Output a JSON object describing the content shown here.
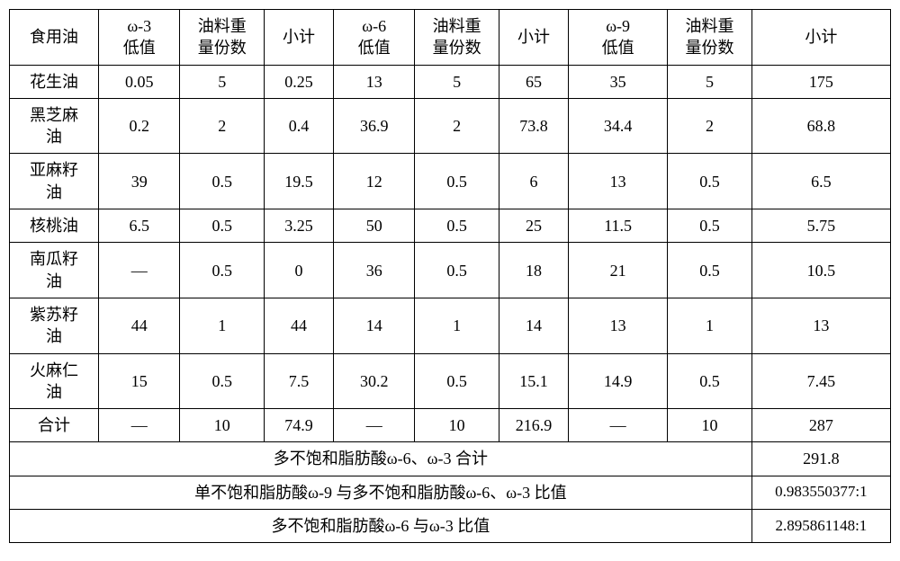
{
  "table": {
    "columns": [
      "食用油",
      "ω-3\n低值",
      "油料重\n量份数",
      "小计",
      "ω-6\n低值",
      "油料重\n量份数",
      "小计",
      "ω-9\n低值",
      "油料重\n量份数",
      "小计"
    ],
    "rows": [
      {
        "name": "花生油",
        "w3_low": "0.05",
        "w3_wt": "5",
        "w3_sub": "0.25",
        "w6_low": "13",
        "w6_wt": "5",
        "w6_sub": "65",
        "w9_low": "35",
        "w9_wt": "5",
        "w9_sub": "175"
      },
      {
        "name": "黑芝麻\n油",
        "w3_low": "0.2",
        "w3_wt": "2",
        "w3_sub": "0.4",
        "w6_low": "36.9",
        "w6_wt": "2",
        "w6_sub": "73.8",
        "w9_low": "34.4",
        "w9_wt": "2",
        "w9_sub": "68.8"
      },
      {
        "name": "亚麻籽\n油",
        "w3_low": "39",
        "w3_wt": "0.5",
        "w3_sub": "19.5",
        "w6_low": "12",
        "w6_wt": "0.5",
        "w6_sub": "6",
        "w9_low": "13",
        "w9_wt": "0.5",
        "w9_sub": "6.5"
      },
      {
        "name": "核桃油",
        "w3_low": "6.5",
        "w3_wt": "0.5",
        "w3_sub": "3.25",
        "w6_low": "50",
        "w6_wt": "0.5",
        "w6_sub": "25",
        "w9_low": "11.5",
        "w9_wt": "0.5",
        "w9_sub": "5.75"
      },
      {
        "name": "南瓜籽\n油",
        "w3_low": "—",
        "w3_wt": "0.5",
        "w3_sub": "0",
        "w6_low": "36",
        "w6_wt": "0.5",
        "w6_sub": "18",
        "w9_low": "21",
        "w9_wt": "0.5",
        "w9_sub": "10.5"
      },
      {
        "name": "紫苏籽\n油",
        "w3_low": "44",
        "w3_wt": "1",
        "w3_sub": "44",
        "w6_low": "14",
        "w6_wt": "1",
        "w6_sub": "14",
        "w9_low": "13",
        "w9_wt": "1",
        "w9_sub": "13"
      },
      {
        "name": "火麻仁\n油",
        "w3_low": "15",
        "w3_wt": "0.5",
        "w3_sub": "7.5",
        "w6_low": "30.2",
        "w6_wt": "0.5",
        "w6_sub": "15.1",
        "w9_low": "14.9",
        "w9_wt": "0.5",
        "w9_sub": "7.45"
      },
      {
        "name": "合计",
        "w3_low": "—",
        "w3_wt": "10",
        "w3_sub": "74.9",
        "w6_low": "—",
        "w6_wt": "10",
        "w6_sub": "216.9",
        "w9_low": "—",
        "w9_wt": "10",
        "w9_sub": "287"
      }
    ],
    "summary": [
      {
        "label": "多不饱和脂肪酸ω-6、ω-3 合计",
        "value": "291.8"
      },
      {
        "label": "单不饱和脂肪酸ω-9 与多不饱和脂肪酸ω-6、ω-3 比值",
        "value": "0.983550377:1"
      },
      {
        "label": "多不饱和脂肪酸ω-6 与ω-3 比值",
        "value": "2.895861148:1"
      }
    ],
    "border_color": "#000000",
    "background_color": "#ffffff",
    "font_family": "SimSun",
    "font_size_pt": 14
  }
}
